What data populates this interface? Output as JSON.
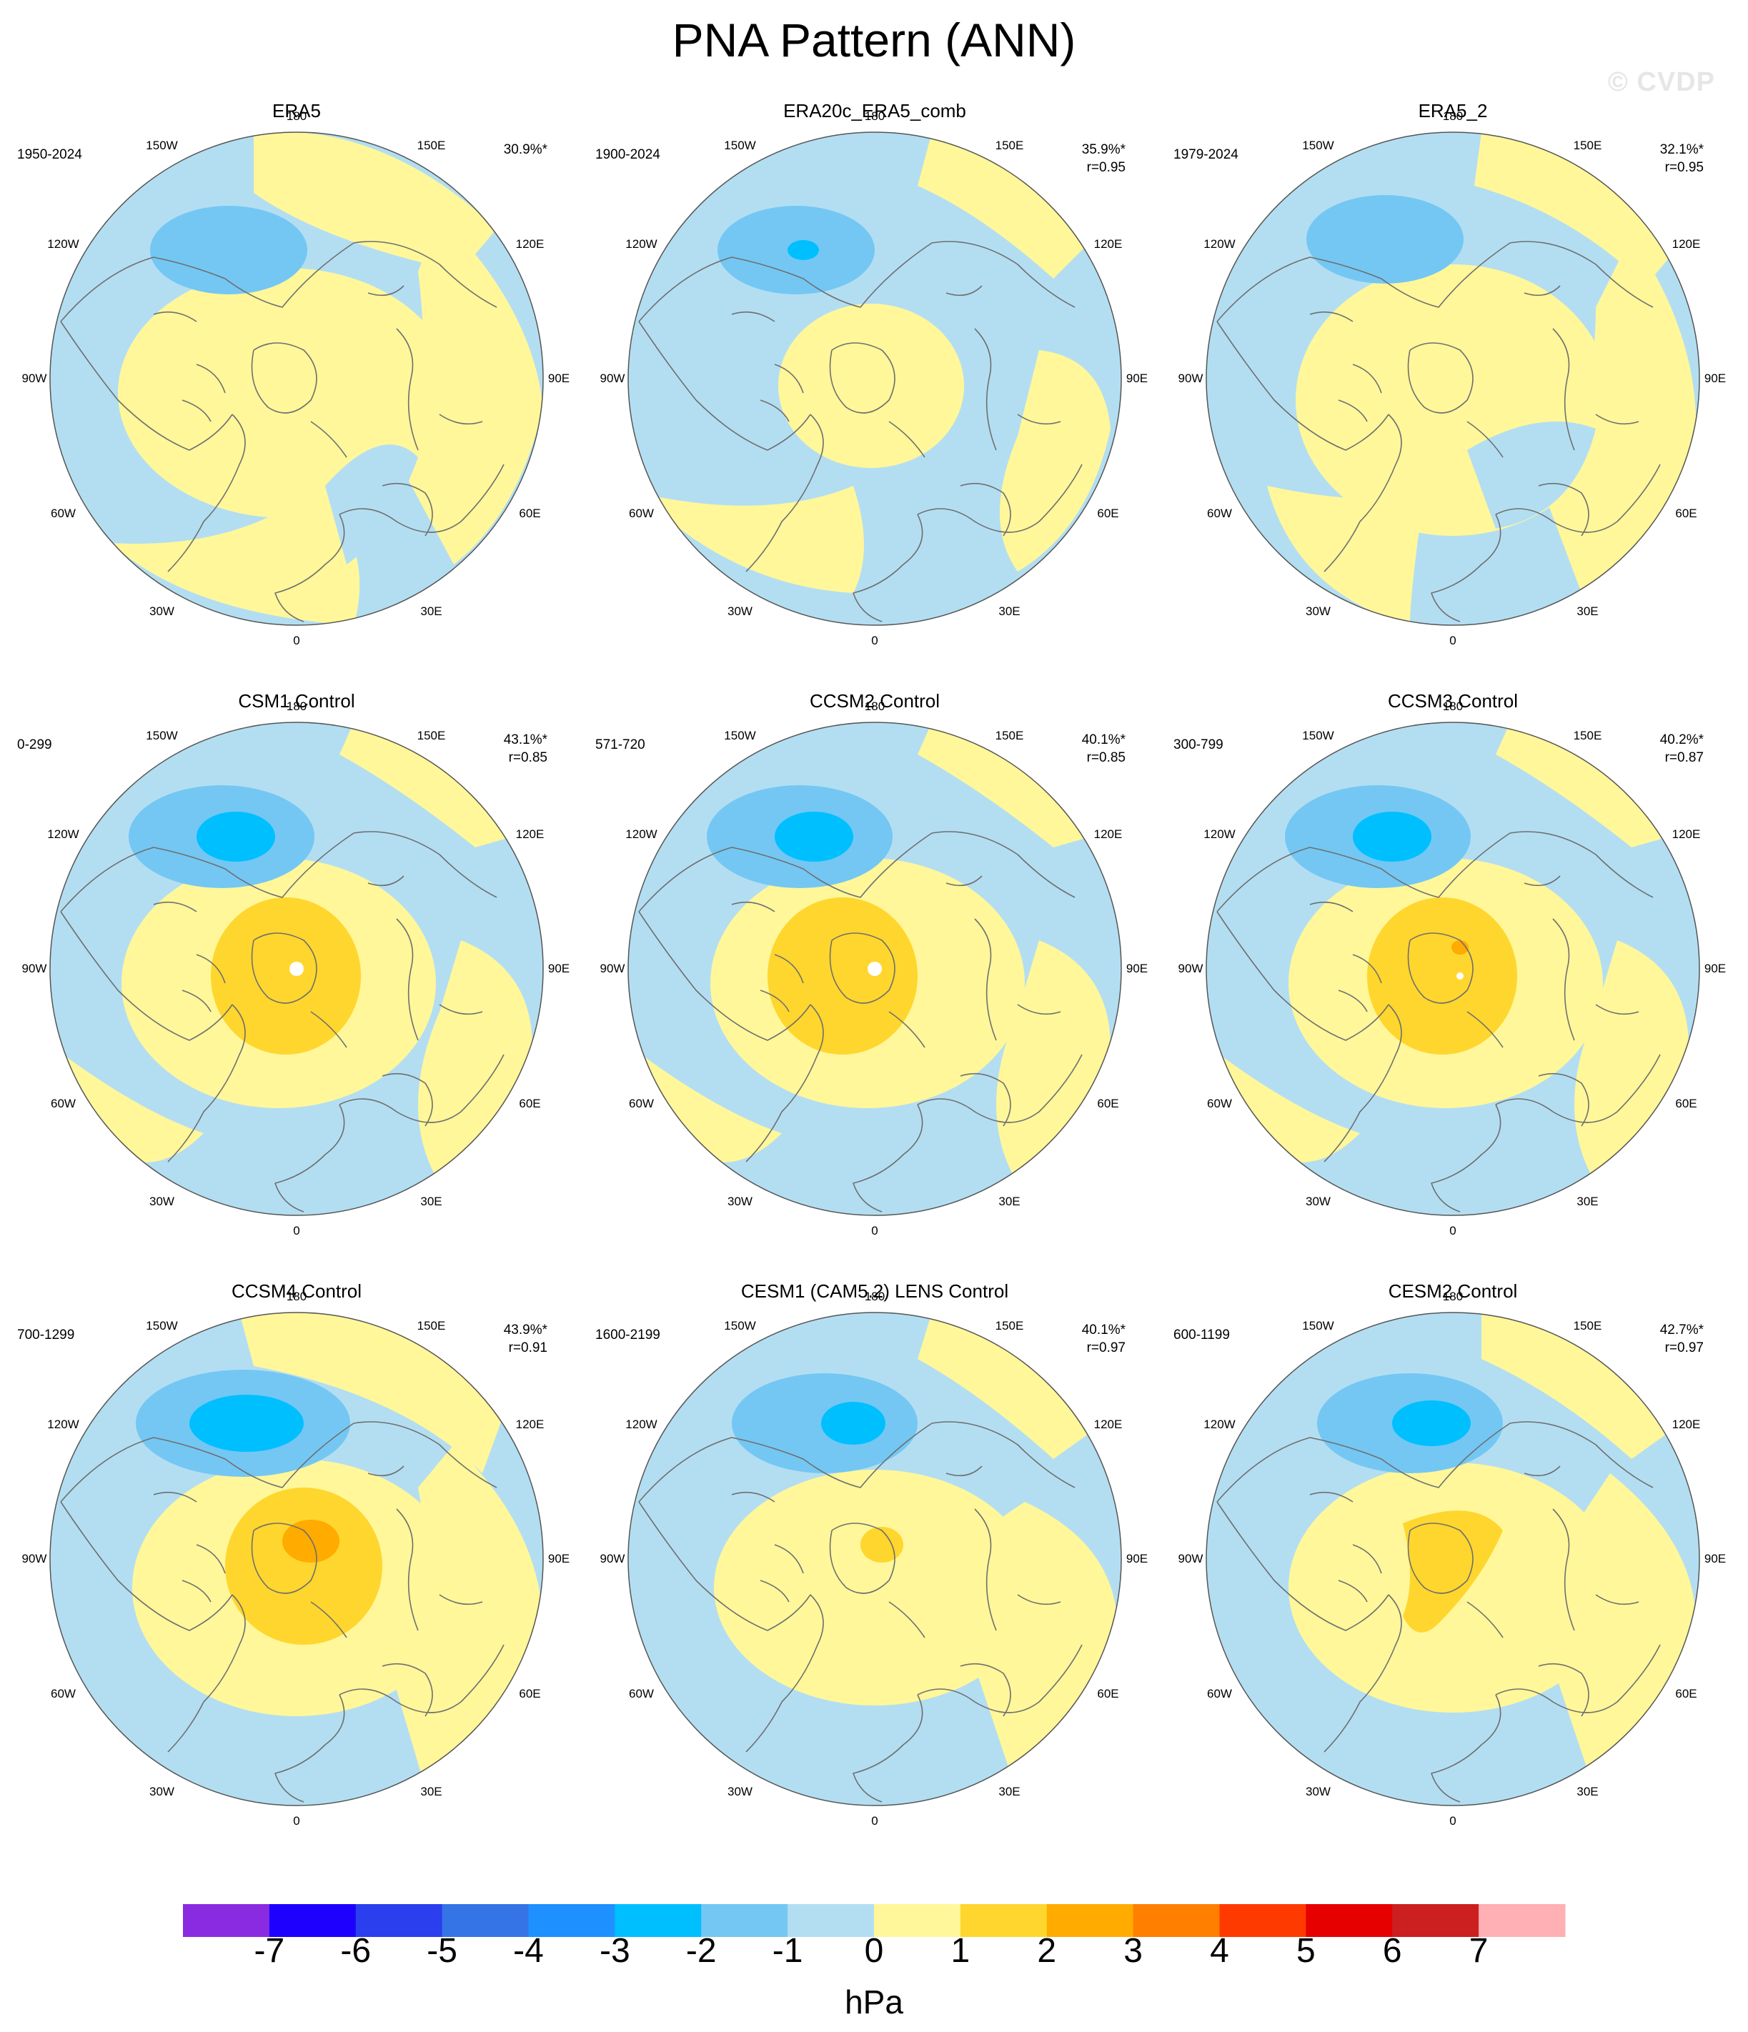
{
  "title": "PNA Pattern (ANN)",
  "watermark": "© CVDP",
  "units": "hPa",
  "colors": {
    "neg": "#b3def2",
    "pos": "#fff79a",
    "l2": "#ffd62d",
    "l3": "#ffab00",
    "n2": "#74c7f3",
    "n3": "#00bfff",
    "land": "#6f6f6f"
  },
  "lon_labels": [
    "180",
    "150E",
    "120E",
    "90E",
    "60E",
    "30E",
    "0",
    "30W",
    "60W",
    "90W",
    "120W",
    "150W"
  ],
  "panels": [
    {
      "title": "ERA5",
      "period": "1950-2024",
      "pct": "30.9%*",
      "r": "",
      "style": 0
    },
    {
      "title": "ERA20c_ERA5_comb",
      "period": "1900-2024",
      "pct": "35.9%*",
      "r": "r=0.95",
      "style": 1
    },
    {
      "title": "ERA5_2",
      "period": "1979-2024",
      "pct": "32.1%*",
      "r": "r=0.95",
      "style": 2
    },
    {
      "title": "CSM1 Control",
      "period": "0-299",
      "pct": "43.1%*",
      "r": "r=0.85",
      "style": 3
    },
    {
      "title": "CCSM2 Control",
      "period": "571-720",
      "pct": "40.1%*",
      "r": "r=0.85",
      "style": 4
    },
    {
      "title": "CCSM3 Control",
      "period": "300-799",
      "pct": "40.2%*",
      "r": "r=0.87",
      "style": 5
    },
    {
      "title": "CCSM4 Control",
      "period": "700-1299",
      "pct": "43.9%*",
      "r": "r=0.91",
      "style": 6
    },
    {
      "title": "CESM1 (CAM5.2) LENS Control",
      "period": "1600-2199",
      "pct": "40.1%*",
      "r": "r=0.97",
      "style": 7
    },
    {
      "title": "CESM2 Control",
      "period": "600-1199",
      "pct": "42.7%*",
      "r": "r=0.97",
      "style": 8
    }
  ],
  "colorbar": {
    "colors": [
      "#8a2be2",
      "#1e00ff",
      "#2b3fee",
      "#3574e6",
      "#1e90ff",
      "#00bfff",
      "#74c7f3",
      "#b3def2",
      "#fff79a",
      "#ffd62d",
      "#ffab00",
      "#ff7f00",
      "#ff3a00",
      "#e60000",
      "#cc1f1f",
      "#ffb0b5"
    ],
    "labels": [
      "-7",
      "-6",
      "-5",
      "-4",
      "-3",
      "-2",
      "-1",
      "0",
      "1",
      "2",
      "3",
      "4",
      "5",
      "6",
      "7"
    ]
  }
}
